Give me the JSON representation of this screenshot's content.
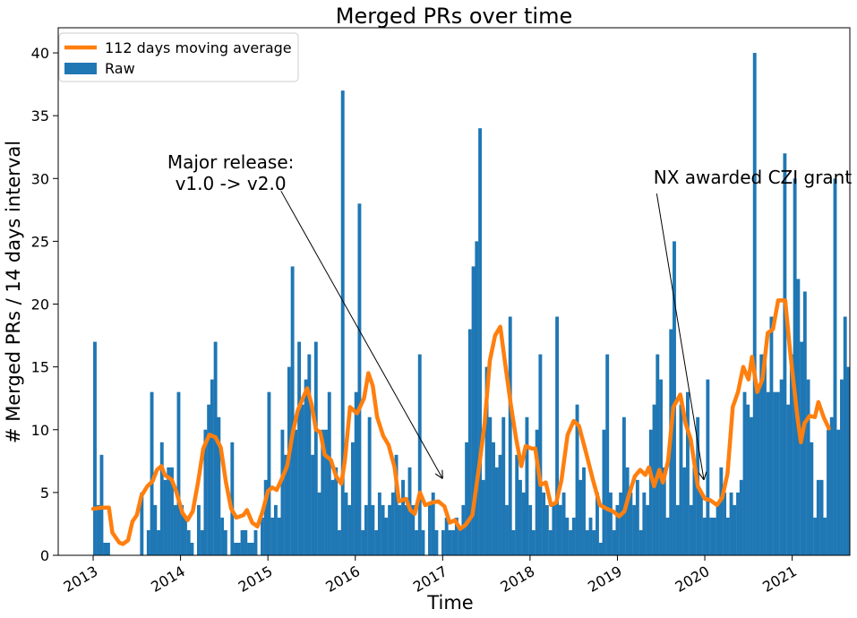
{
  "chart_data": {
    "type": "bar",
    "title": "Merged PRs over time",
    "xlabel": "Time",
    "ylabel": "# Merged PRs / 14 days interval",
    "ylim": [
      0,
      42
    ],
    "yticks": [
      0,
      5,
      10,
      15,
      20,
      25,
      30,
      35,
      40
    ],
    "xlim": [
      2012.6,
      2021.66
    ],
    "xticks": [
      {
        "value": 2013,
        "label": "2013"
      },
      {
        "value": 2014,
        "label": "2014"
      },
      {
        "value": 2015,
        "label": "2015"
      },
      {
        "value": 2016,
        "label": "2016"
      },
      {
        "value": 2017,
        "label": "2017"
      },
      {
        "value": 2018,
        "label": "2018"
      },
      {
        "value": 2019,
        "label": "2019"
      },
      {
        "value": 2020,
        "label": "2020"
      },
      {
        "value": 2021,
        "label": "2021"
      }
    ],
    "bar_start": 2013.0,
    "bar_interval_years": 0.03833,
    "series": [
      {
        "name": "Raw",
        "kind": "bar",
        "color": "#1f77b4",
        "values": [
          17,
          4,
          8,
          1,
          1,
          0,
          0,
          0,
          0,
          0,
          0,
          0,
          0,
          0,
          5,
          0,
          2,
          13,
          4,
          2,
          9,
          6,
          7,
          7,
          4,
          13,
          4,
          3,
          2,
          1,
          0,
          4,
          2,
          10,
          12,
          14,
          17,
          11,
          3,
          2,
          0,
          9,
          1,
          1,
          2,
          2,
          1,
          1,
          2,
          0,
          3,
          6,
          13,
          3,
          4,
          3,
          10,
          8,
          15,
          23,
          10,
          17,
          12,
          14,
          16,
          8,
          17,
          5,
          10,
          10,
          13,
          6,
          7,
          2,
          37,
          5,
          4,
          9,
          13,
          28,
          2,
          4,
          11,
          4,
          2,
          5,
          4,
          3,
          4,
          5,
          8,
          4,
          6,
          4,
          7,
          4,
          2,
          16,
          2,
          0,
          4,
          5,
          2,
          0,
          2,
          3,
          2,
          2,
          3,
          2,
          4,
          9,
          18,
          23,
          25,
          34,
          6,
          15,
          11,
          9,
          7,
          8,
          11,
          4,
          19,
          2,
          8,
          6,
          5,
          11,
          4,
          2,
          10,
          16,
          5,
          4,
          2,
          4,
          19,
          4,
          5,
          3,
          2,
          3,
          12,
          6,
          7,
          2,
          3,
          2,
          5,
          1,
          10,
          16,
          5,
          2,
          4,
          5,
          11,
          7,
          5,
          4,
          6,
          2,
          5,
          4,
          10,
          12,
          16,
          14,
          7,
          3,
          18,
          25,
          4,
          12,
          7,
          13,
          4,
          7,
          11,
          5,
          3,
          14,
          3,
          3,
          4,
          7,
          5,
          3,
          5,
          4,
          5,
          6,
          13,
          12,
          11,
          40,
          13,
          16,
          16,
          13,
          19,
          13,
          13,
          14,
          32,
          12,
          16,
          30,
          22,
          17,
          21,
          14,
          9,
          3,
          6,
          6,
          3,
          10,
          11,
          30,
          10,
          14,
          19,
          15
        ]
      },
      {
        "name": "112 days moving average",
        "kind": "line",
        "color": "#ff7f0e",
        "points": [
          [
            2013.0,
            3.7
          ],
          [
            2013.1,
            3.8
          ],
          [
            2013.18,
            3.8
          ],
          [
            2013.22,
            1.8
          ],
          [
            2013.3,
            1.0
          ],
          [
            2013.34,
            0.9
          ],
          [
            2013.4,
            1.2
          ],
          [
            2013.45,
            2.7
          ],
          [
            2013.5,
            3.2
          ],
          [
            2013.55,
            4.7
          ],
          [
            2013.62,
            5.5
          ],
          [
            2013.68,
            5.9
          ],
          [
            2013.73,
            6.8
          ],
          [
            2013.78,
            7.1
          ],
          [
            2013.82,
            6.4
          ],
          [
            2013.9,
            6.0
          ],
          [
            2013.95,
            5.1
          ],
          [
            2014.02,
            3.4
          ],
          [
            2014.08,
            2.8
          ],
          [
            2014.14,
            3.5
          ],
          [
            2014.2,
            5.8
          ],
          [
            2014.26,
            8.5
          ],
          [
            2014.33,
            9.6
          ],
          [
            2014.4,
            9.4
          ],
          [
            2014.46,
            8.6
          ],
          [
            2014.52,
            5.8
          ],
          [
            2014.58,
            3.7
          ],
          [
            2014.64,
            3.0
          ],
          [
            2014.72,
            3.2
          ],
          [
            2014.76,
            3.6
          ],
          [
            2014.82,
            2.6
          ],
          [
            2014.88,
            2.3
          ],
          [
            2014.94,
            3.5
          ],
          [
            2015.0,
            5.1
          ],
          [
            2015.05,
            5.4
          ],
          [
            2015.1,
            5.2
          ],
          [
            2015.16,
            6.1
          ],
          [
            2015.22,
            7.1
          ],
          [
            2015.28,
            9.6
          ],
          [
            2015.34,
            11.5
          ],
          [
            2015.4,
            12.5
          ],
          [
            2015.45,
            13.3
          ],
          [
            2015.5,
            12.0
          ],
          [
            2015.55,
            10.0
          ],
          [
            2015.6,
            9.8
          ],
          [
            2015.65,
            8.0
          ],
          [
            2015.72,
            7.6
          ],
          [
            2015.78,
            6.3
          ],
          [
            2015.84,
            5.7
          ],
          [
            2015.88,
            7.5
          ],
          [
            2015.94,
            11.8
          ],
          [
            2016.02,
            11.3
          ],
          [
            2016.1,
            12.5
          ],
          [
            2016.15,
            14.5
          ],
          [
            2016.2,
            13.5
          ],
          [
            2016.25,
            11.0
          ],
          [
            2016.32,
            9.5
          ],
          [
            2016.38,
            8.8
          ],
          [
            2016.45,
            7.0
          ],
          [
            2016.5,
            4.3
          ],
          [
            2016.58,
            4.5
          ],
          [
            2016.63,
            3.6
          ],
          [
            2016.68,
            3.3
          ],
          [
            2016.74,
            5.0
          ],
          [
            2016.8,
            4.0
          ],
          [
            2016.88,
            4.2
          ],
          [
            2016.95,
            4.3
          ],
          [
            2017.02,
            3.9
          ],
          [
            2017.08,
            2.6
          ],
          [
            2017.14,
            2.8
          ],
          [
            2017.2,
            2.1
          ],
          [
            2017.26,
            2.4
          ],
          [
            2017.34,
            3.2
          ],
          [
            2017.42,
            7.2
          ],
          [
            2017.48,
            10.5
          ],
          [
            2017.54,
            15.5
          ],
          [
            2017.6,
            17.5
          ],
          [
            2017.66,
            18.2
          ],
          [
            2017.72,
            15.0
          ],
          [
            2017.78,
            12.0
          ],
          [
            2017.84,
            9.3
          ],
          [
            2017.9,
            7.1
          ],
          [
            2017.95,
            8.7
          ],
          [
            2018.02,
            8.5
          ],
          [
            2018.06,
            8.5
          ],
          [
            2018.12,
            5.6
          ],
          [
            2018.18,
            5.8
          ],
          [
            2018.24,
            4.0
          ],
          [
            2018.3,
            4.2
          ],
          [
            2018.36,
            6.0
          ],
          [
            2018.43,
            9.6
          ],
          [
            2018.5,
            10.7
          ],
          [
            2018.56,
            10.3
          ],
          [
            2018.64,
            8.2
          ],
          [
            2018.72,
            6.0
          ],
          [
            2018.8,
            4.0
          ],
          [
            2018.88,
            3.7
          ],
          [
            2018.95,
            3.5
          ],
          [
            2019.02,
            3.1
          ],
          [
            2019.08,
            3.5
          ],
          [
            2019.14,
            5.0
          ],
          [
            2019.2,
            6.3
          ],
          [
            2019.26,
            6.8
          ],
          [
            2019.32,
            6.4
          ],
          [
            2019.36,
            7.0
          ],
          [
            2019.42,
            5.5
          ],
          [
            2019.48,
            6.8
          ],
          [
            2019.52,
            5.8
          ],
          [
            2019.58,
            7.5
          ],
          [
            2019.64,
            11.8
          ],
          [
            2019.72,
            12.8
          ],
          [
            2019.78,
            10.5
          ],
          [
            2019.84,
            9.2
          ],
          [
            2019.92,
            5.5
          ],
          [
            2020.0,
            4.5
          ],
          [
            2020.06,
            4.4
          ],
          [
            2020.14,
            4.0
          ],
          [
            2020.2,
            4.6
          ],
          [
            2020.26,
            6.5
          ],
          [
            2020.32,
            11.8
          ],
          [
            2020.38,
            13.0
          ],
          [
            2020.44,
            15.0
          ],
          [
            2020.5,
            14.0
          ],
          [
            2020.54,
            15.8
          ],
          [
            2020.6,
            13.0
          ],
          [
            2020.66,
            14.0
          ],
          [
            2020.72,
            17.7
          ],
          [
            2020.78,
            18.0
          ],
          [
            2020.84,
            20.3
          ],
          [
            2020.92,
            20.3
          ],
          [
            2020.98,
            16.0
          ],
          [
            2021.06,
            11.0
          ],
          [
            2021.1,
            9.0
          ],
          [
            2021.14,
            10.5
          ],
          [
            2021.2,
            11.1
          ],
          [
            2021.26,
            11.0
          ],
          [
            2021.3,
            12.2
          ],
          [
            2021.36,
            11.0
          ],
          [
            2021.42,
            10.1
          ]
        ]
      }
    ],
    "legend": {
      "location": "top-left",
      "entries": [
        "112 days moving average",
        "Raw"
      ]
    },
    "annotations": [
      {
        "text_lines": [
          "Major release:",
          "v1.0 -> v2.0"
        ],
        "text_x": 2014.0,
        "text_y": 30.8,
        "arrow_from": [
          2015.15,
          29.0
        ],
        "arrow_to": [
          2017.0,
          6.1
        ]
      },
      {
        "text_lines": [
          "NX awarded CZI grant"
        ],
        "text_x": 2019.4,
        "text_y": 29.6,
        "arrow_from": [
          2019.45,
          28.8
        ],
        "arrow_to": [
          2019.99,
          6.0
        ]
      }
    ]
  }
}
